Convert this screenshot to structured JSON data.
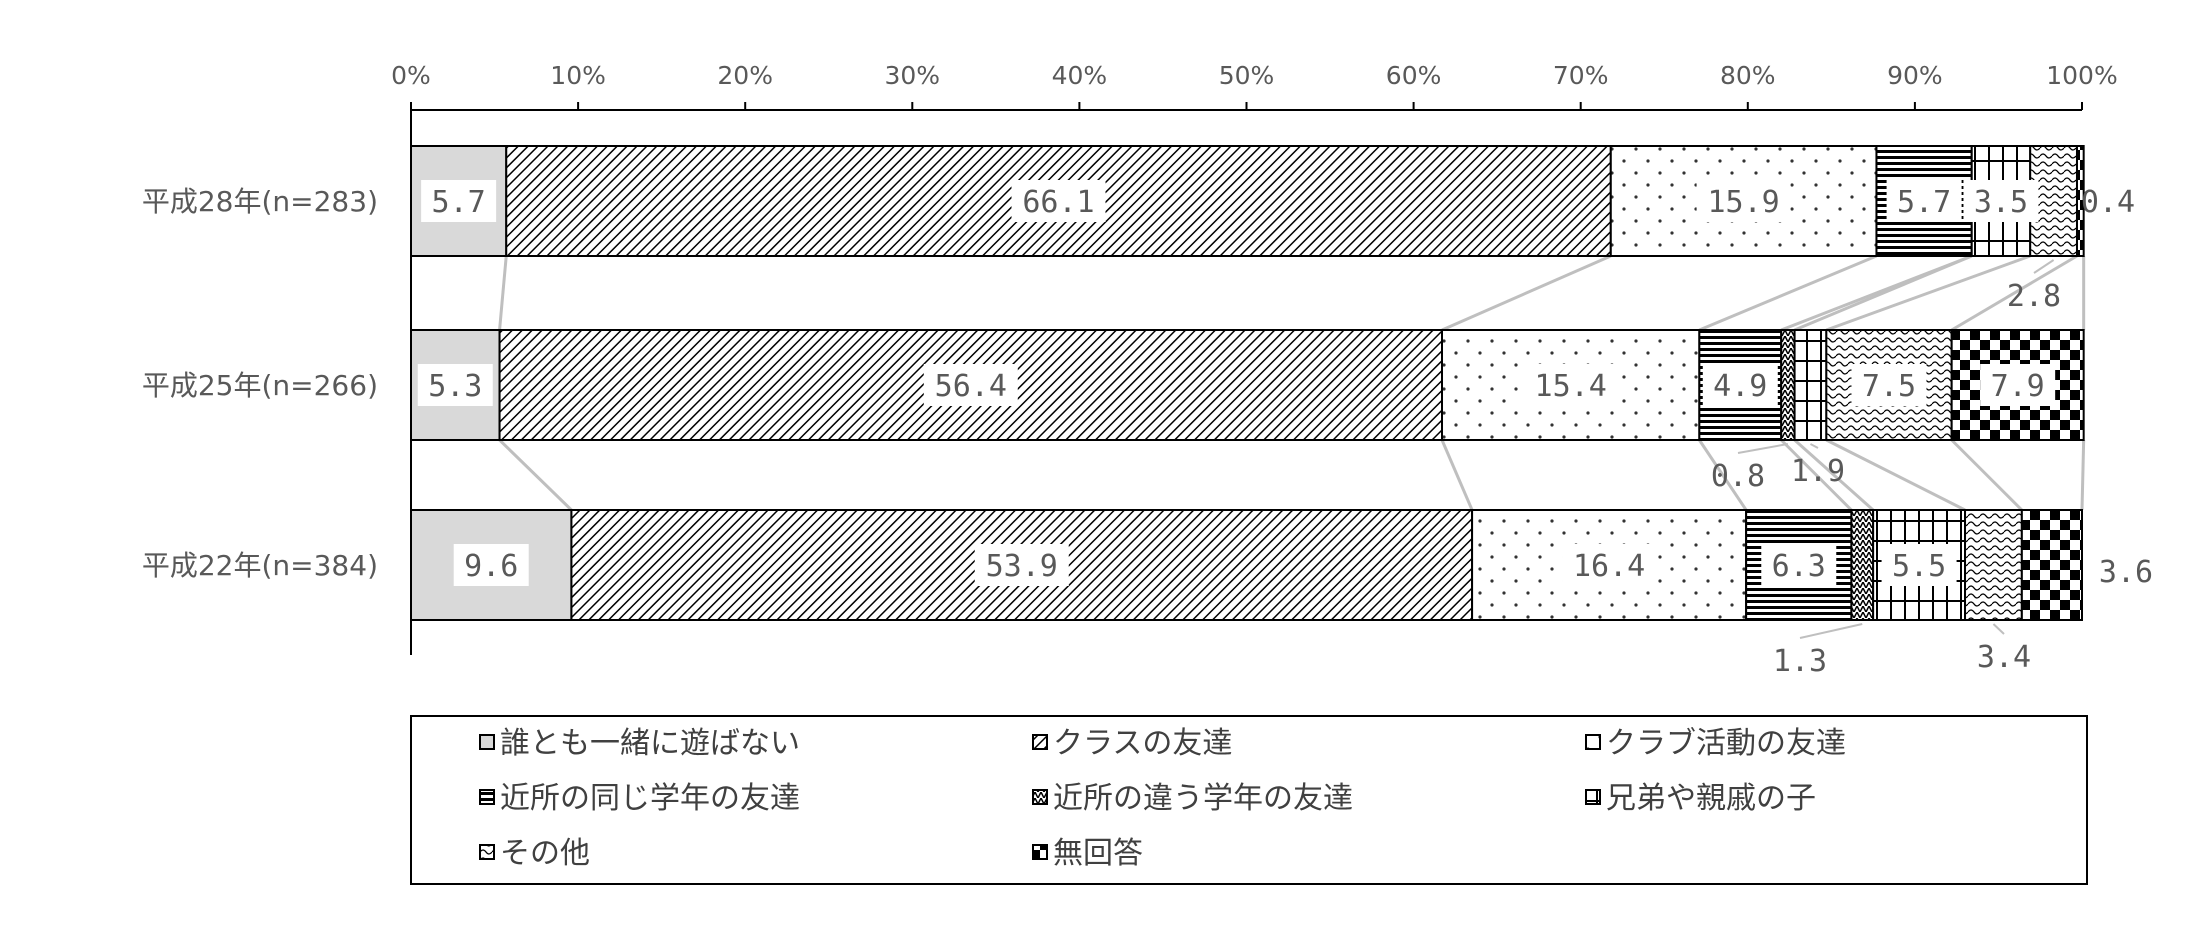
{
  "chart_data": {
    "type": "bar",
    "orientation": "horizontal",
    "stacked": "100%",
    "categories": [
      "平成28年(n=283)",
      "平成25年(n=266)",
      "平成22年(n=384)"
    ],
    "x_ticks": [
      "0%",
      "10%",
      "20%",
      "30%",
      "40%",
      "50%",
      "60%",
      "70%",
      "80%",
      "90%",
      "100%"
    ],
    "xlim": [
      0,
      100
    ],
    "legend_position": "bottom",
    "grid": false,
    "series": [
      {
        "name": "誰とも一緒に遊ばない",
        "values": [
          5.7,
          5.3,
          9.6
        ],
        "labels": [
          "5.7",
          "5.3",
          "9.6"
        ],
        "pattern": "solid-gray"
      },
      {
        "name": "クラスの友達",
        "values": [
          66.1,
          56.4,
          53.9
        ],
        "labels": [
          "66.1",
          "56.4",
          "53.9"
        ],
        "pattern": "diagonal"
      },
      {
        "name": "クラブ活動の友達",
        "values": [
          15.9,
          15.4,
          16.4
        ],
        "labels": [
          "15.9",
          "15.4",
          "16.4"
        ],
        "pattern": "dots"
      },
      {
        "name": "近所の同じ学年の友達",
        "values": [
          5.7,
          4.9,
          6.3
        ],
        "labels": [
          "5.7",
          "4.9",
          "6.3"
        ],
        "pattern": "horizontal"
      },
      {
        "name": "近所の違う学年の友達",
        "values": [
          0.0,
          0.8,
          1.3
        ],
        "labels": [
          "0.0",
          "0.8",
          "1.3"
        ],
        "pattern": "zigzag"
      },
      {
        "name": "兄弟や親戚の子",
        "values": [
          3.5,
          1.9,
          5.5
        ],
        "labels": [
          "3.5",
          "1.9",
          "5.5"
        ],
        "pattern": "grid"
      },
      {
        "name": "その他",
        "values": [
          2.8,
          7.5,
          3.4
        ],
        "labels": [
          "2.8",
          "7.5",
          "3.4"
        ],
        "pattern": "wave"
      },
      {
        "name": "無回答",
        "values": [
          0.4,
          7.9,
          3.6
        ],
        "labels": [
          "0.4",
          "7.9",
          "3.6"
        ],
        "pattern": "checker"
      }
    ]
  }
}
